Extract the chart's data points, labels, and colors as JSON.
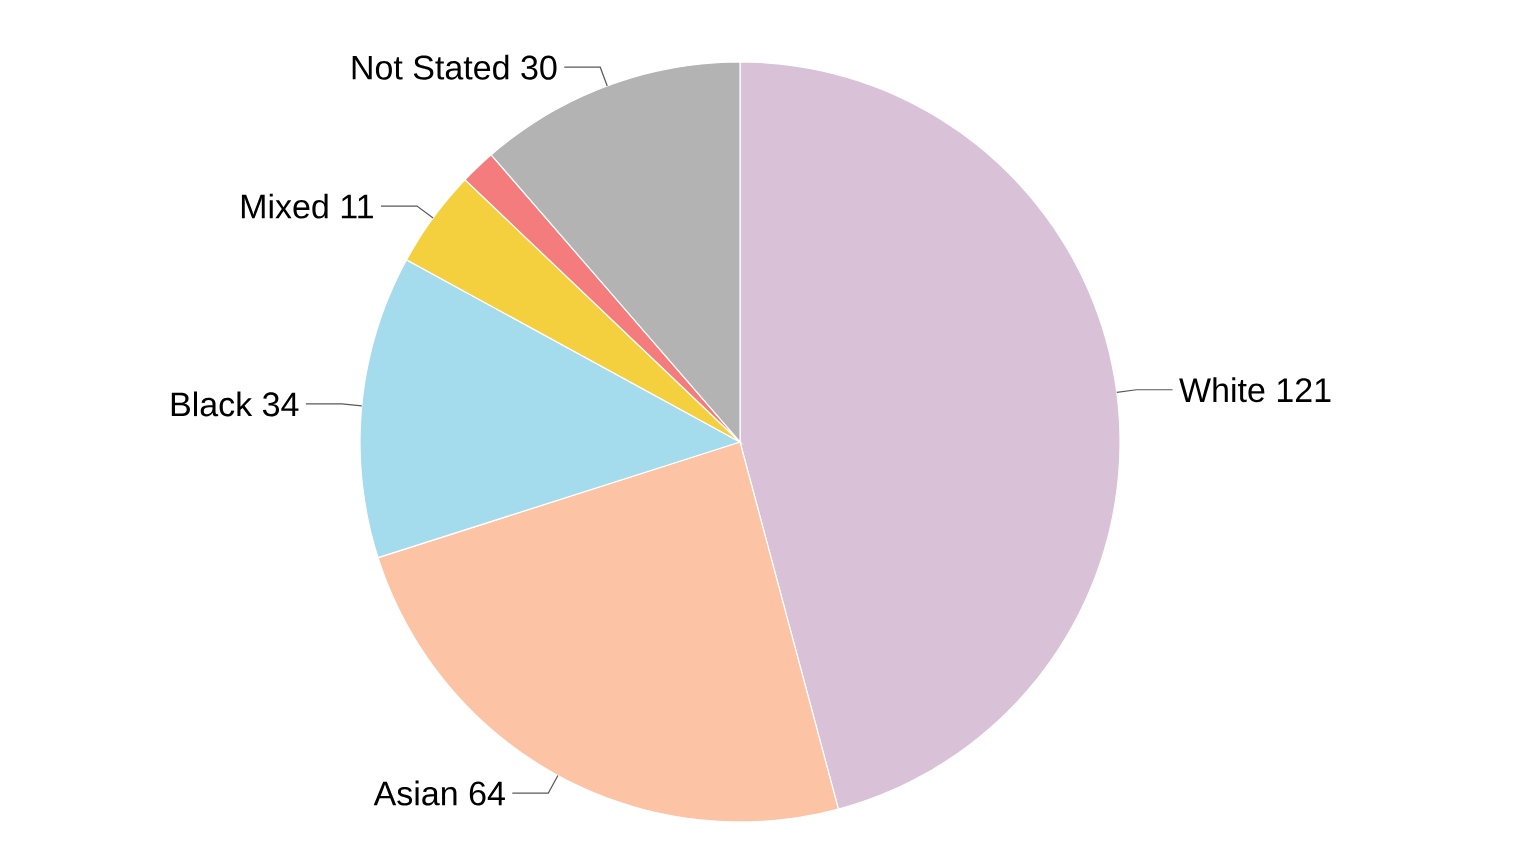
{
  "chart_data": {
    "type": "pie",
    "categories": [
      "White",
      "Asian",
      "Black",
      "Mixed",
      null,
      "Not Stated"
    ],
    "values": [
      121,
      64,
      34,
      11,
      4,
      30
    ],
    "colors": [
      "#d9c2d8",
      "#fcc3a5",
      "#a4dbed",
      "#f4d03f",
      "#f47c7c",
      "#b3b3b3"
    ],
    "value_labels": [
      "121",
      "64",
      "34",
      "11",
      null,
      "30"
    ]
  }
}
